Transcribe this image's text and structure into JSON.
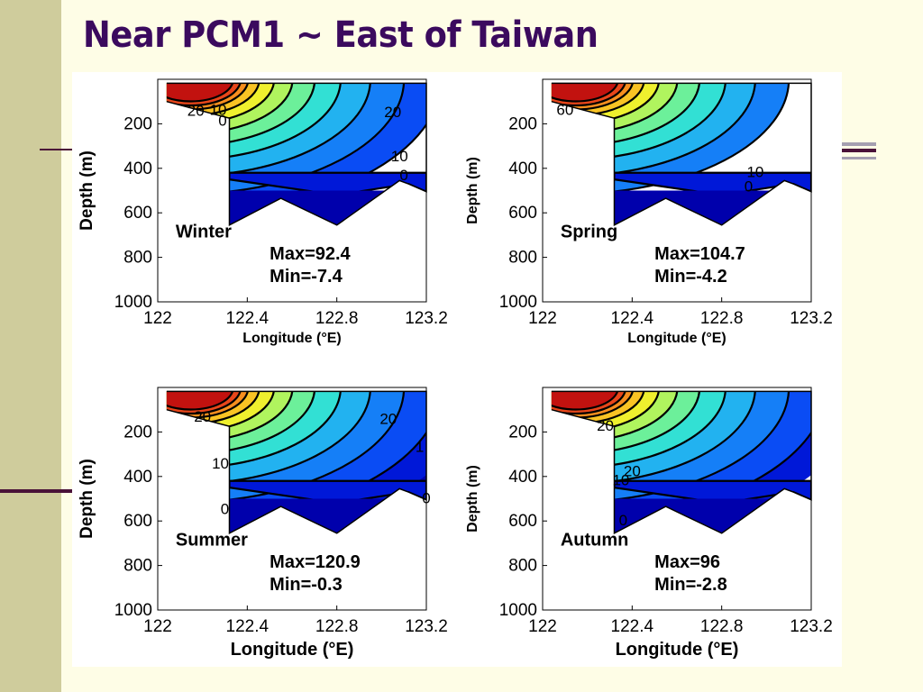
{
  "slide": {
    "title": "Near PCM1 ~ East of Taiwan"
  },
  "chart_data": [
    {
      "type": "heatmap",
      "panel": "Winter",
      "season_label": "Winter",
      "max_label": "Max=92.4",
      "min_label": "Min=-7.4",
      "max": 92.4,
      "min": -7.4,
      "xlabel": "Longitude (°E)",
      "ylabel": "Depth (m)",
      "xlim": [
        122,
        123.2
      ],
      "ylim": [
        1000,
        0
      ],
      "xticks": [
        "122",
        "122.4",
        "122.8",
        "123.2"
      ],
      "yticks": [
        "200",
        "400",
        "600",
        "800",
        "1000"
      ],
      "contour_labels": [
        {
          "text": "20",
          "lon": 122.17,
          "depth": 140
        },
        {
          "text": "10",
          "lon": 122.27,
          "depth": 135
        },
        {
          "text": "0",
          "lon": 122.29,
          "depth": 185
        },
        {
          "text": "20",
          "lon": 123.05,
          "depth": 145
        },
        {
          "text": "10",
          "lon": 123.08,
          "depth": 345
        },
        {
          "text": "0",
          "lon": 123.1,
          "depth": 430
        }
      ]
    },
    {
      "type": "heatmap",
      "panel": "Spring",
      "season_label": "Spring",
      "max_label": "Max=104.7",
      "min_label": "Min=-4.2",
      "max": 104.7,
      "min": -4.2,
      "xlabel": "Longitude (°E)",
      "ylabel": "Depth (m)",
      "xlim": [
        122,
        123.2
      ],
      "ylim": [
        1000,
        0
      ],
      "xticks": [
        "122",
        "122.4",
        "122.8",
        "123.2"
      ],
      "yticks": [
        "200",
        "400",
        "600",
        "800",
        "1000"
      ],
      "contour_labels": [
        {
          "text": "60",
          "lon": 122.1,
          "depth": 135
        },
        {
          "text": "10",
          "lon": 122.95,
          "depth": 415
        },
        {
          "text": "0",
          "lon": 122.92,
          "depth": 480
        }
      ]
    },
    {
      "type": "heatmap",
      "panel": "Summer",
      "season_label": "Summer",
      "max_label": "Max=120.9",
      "min_label": "Min=-0.3",
      "max": 120.9,
      "min": -0.3,
      "xlabel": "Longitude (°E)",
      "ylabel": "Depth (m)",
      "xlim": [
        122,
        123.2
      ],
      "ylim": [
        1000,
        0
      ],
      "xticks": [
        "122",
        "122.4",
        "122.8",
        "123.2"
      ],
      "yticks": [
        "200",
        "400",
        "600",
        "800",
        "1000"
      ],
      "contour_labels": [
        {
          "text": "20",
          "lon": 122.2,
          "depth": 130
        },
        {
          "text": "20",
          "lon": 123.03,
          "depth": 140
        },
        {
          "text": "1",
          "lon": 123.17,
          "depth": 265
        },
        {
          "text": "10",
          "lon": 122.28,
          "depth": 340
        },
        {
          "text": "0",
          "lon": 123.2,
          "depth": 495
        },
        {
          "text": "0",
          "lon": 122.3,
          "depth": 545
        }
      ]
    },
    {
      "type": "heatmap",
      "panel": "Autumn",
      "season_label": "Autumn",
      "max_label": "Max=96",
      "min_label": "Min=-2.8",
      "max": 96,
      "min": -2.8,
      "xlabel": "Longitude (°E)",
      "ylabel": "Depth (m)",
      "xlim": [
        122,
        123.2
      ],
      "ylim": [
        1000,
        0
      ],
      "xticks": [
        "122",
        "122.4",
        "122.8",
        "123.2"
      ],
      "yticks": [
        "200",
        "400",
        "600",
        "800",
        "1000"
      ],
      "contour_labels": [
        {
          "text": "20",
          "lon": 122.28,
          "depth": 170
        },
        {
          "text": "20",
          "lon": 122.4,
          "depth": 375
        },
        {
          "text": "10",
          "lon": 122.35,
          "depth": 415
        },
        {
          "text": "0",
          "lon": 122.36,
          "depth": 595
        }
      ]
    }
  ]
}
